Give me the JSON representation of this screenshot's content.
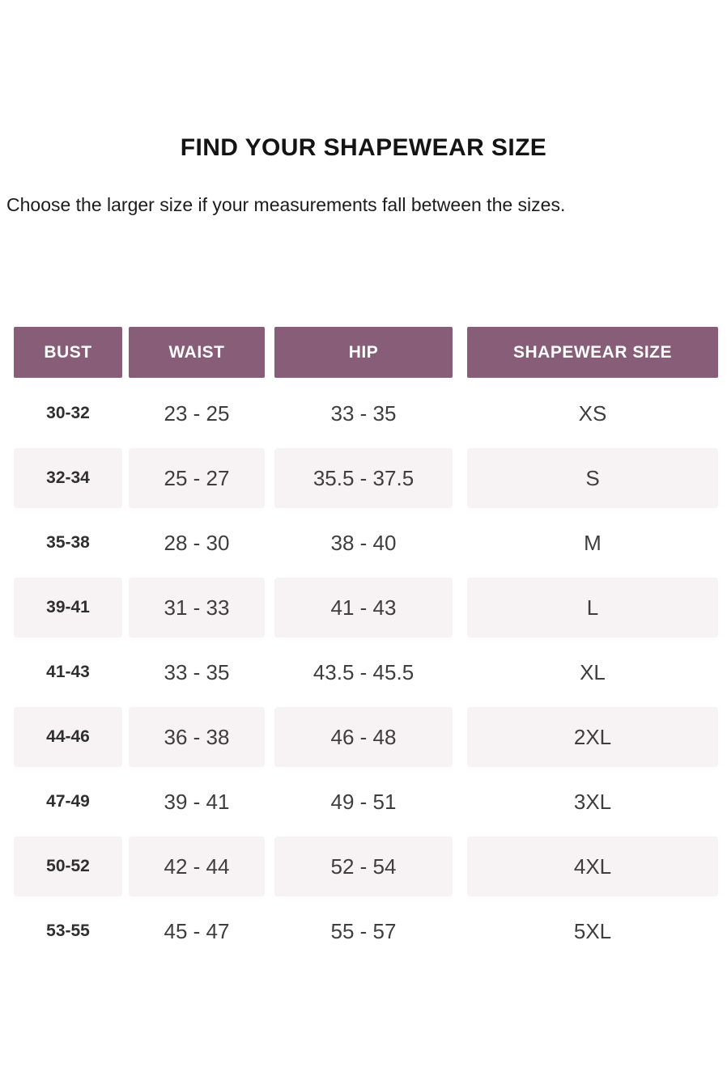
{
  "title": "FIND YOUR SHAPEWEAR SIZE",
  "subtitle": "Choose the larger size if your measurements fall between the sizes.",
  "table": {
    "columns": [
      "BUST",
      "WAIST",
      "HIP",
      "SHAPEWEAR SIZE"
    ],
    "rows": [
      {
        "bust": "30-32",
        "waist": "23 - 25",
        "hip": "33 - 35",
        "size": "XS",
        "shaded": false
      },
      {
        "bust": "32-34",
        "waist": "25 - 27",
        "hip": "35.5 - 37.5",
        "size": "S",
        "shaded": true
      },
      {
        "bust": "35-38",
        "waist": "28 - 30",
        "hip": "38 - 40",
        "size": "M",
        "shaded": false
      },
      {
        "bust": "39-41",
        "waist": "31 - 33",
        "hip": "41 - 43",
        "size": "L",
        "shaded": true
      },
      {
        "bust": "41-43",
        "waist": "33 - 35",
        "hip": "43.5 - 45.5",
        "size": "XL",
        "shaded": false
      },
      {
        "bust": "44-46",
        "waist": "36 - 38",
        "hip": "46 - 48",
        "size": "2XL",
        "shaded": true
      },
      {
        "bust": "47-49",
        "waist": "39 - 41",
        "hip": "49 - 51",
        "size": "3XL",
        "shaded": false
      },
      {
        "bust": "50-52",
        "waist": "42 - 44",
        "hip": "52 - 54",
        "size": "4XL",
        "shaded": true
      },
      {
        "bust": "53-55",
        "waist": "45 - 47",
        "hip": "55 - 57",
        "size": "5XL",
        "shaded": false
      }
    ]
  },
  "colors": {
    "header_bg": "#885D77",
    "header_text": "#FFFFFF",
    "shaded_row_bg": "#F7F2F4",
    "data_text": "#3E3E3E",
    "bust_text": "#2F2F2F",
    "title_text": "#141414",
    "page_bg": "#FFFFFF"
  }
}
